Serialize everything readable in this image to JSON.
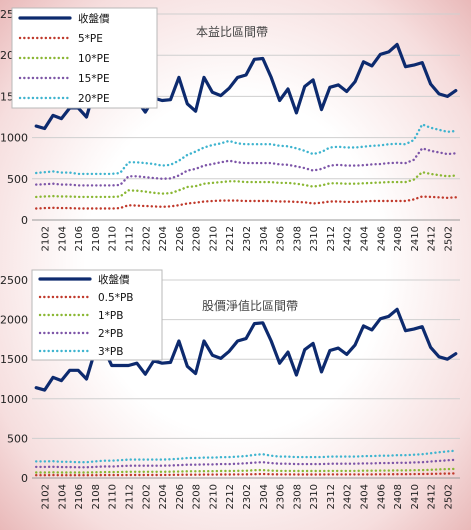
{
  "chart_data": [
    {
      "type": "line",
      "title": "本益比區間帶",
      "ylim": [
        0,
        2500
      ],
      "yticks": [
        0,
        500,
        1000,
        1500,
        2000,
        2500
      ],
      "x_tick_labels": [
        "2102",
        "2104",
        "2106",
        "2108",
        "2110",
        "2112",
        "2202",
        "2204",
        "2206",
        "2208",
        "2210",
        "2212",
        "2302",
        "2304",
        "2306",
        "2308",
        "2310",
        "2312",
        "2402",
        "2404",
        "2406",
        "2408",
        "2410",
        "2412",
        "2502"
      ],
      "x": [
        "2101",
        "2102",
        "2103",
        "2104",
        "2105",
        "2106",
        "2107",
        "2108",
        "2109",
        "2110",
        "2111",
        "2112",
        "2201",
        "2202",
        "2203",
        "2204",
        "2205",
        "2206",
        "2207",
        "2208",
        "2209",
        "2210",
        "2211",
        "2212",
        "2301",
        "2302",
        "2303",
        "2304",
        "2305",
        "2306",
        "2307",
        "2308",
        "2309",
        "2310",
        "2311",
        "2312",
        "2401",
        "2402",
        "2403",
        "2404",
        "2405",
        "2406",
        "2407",
        "2408",
        "2409",
        "2410",
        "2411",
        "2412",
        "2501",
        "2502",
        "2503"
      ],
      "grid": true,
      "legend_position": "top-left",
      "series": [
        {
          "name": "收盤價",
          "color": "#0d2a6e",
          "style": "solid",
          "values": [
            1140,
            1110,
            1270,
            1230,
            1360,
            1360,
            1250,
            1600,
            1650,
            1420,
            1420,
            1420,
            1450,
            1310,
            1480,
            1450,
            1460,
            1730,
            1410,
            1320,
            1730,
            1550,
            1510,
            1600,
            1730,
            1760,
            1950,
            1960,
            1730,
            1450,
            1590,
            1300,
            1620,
            1700,
            1340,
            1610,
            1640,
            1560,
            1680,
            1920,
            1870,
            2010,
            2040,
            2130,
            1860,
            1880,
            1910,
            1650,
            1530,
            1500,
            1570
          ]
        },
        {
          "name": "5*PE",
          "color": "#c0392b",
          "style": "dotted",
          "values": [
            140,
            145,
            148,
            145,
            145,
            140,
            140,
            140,
            140,
            140,
            145,
            180,
            175,
            170,
            165,
            160,
            165,
            180,
            200,
            210,
            225,
            230,
            235,
            235,
            235,
            230,
            230,
            230,
            230,
            225,
            225,
            220,
            215,
            200,
            210,
            225,
            225,
            220,
            220,
            225,
            230,
            230,
            230,
            230,
            230,
            250,
            285,
            280,
            275,
            270,
            275
          ]
        },
        {
          "name": "10*PE",
          "color": "#8ab733",
          "style": "dotted",
          "values": [
            280,
            285,
            290,
            285,
            285,
            280,
            280,
            280,
            280,
            280,
            285,
            360,
            355,
            345,
            330,
            320,
            325,
            360,
            400,
            410,
            440,
            450,
            460,
            470,
            470,
            460,
            460,
            460,
            460,
            450,
            450,
            440,
            425,
            405,
            420,
            445,
            445,
            440,
            440,
            445,
            450,
            455,
            460,
            460,
            460,
            490,
            580,
            560,
            545,
            530,
            540
          ]
        },
        {
          "name": "15*PE",
          "color": "#7d55a8",
          "style": "dotted",
          "values": [
            430,
            435,
            440,
            430,
            430,
            420,
            420,
            420,
            420,
            420,
            425,
            530,
            530,
            520,
            510,
            500,
            505,
            540,
            600,
            620,
            660,
            680,
            700,
            720,
            700,
            690,
            690,
            690,
            690,
            675,
            670,
            650,
            630,
            600,
            620,
            660,
            670,
            660,
            660,
            665,
            675,
            680,
            690,
            695,
            690,
            730,
            870,
            840,
            820,
            800,
            810
          ]
        },
        {
          "name": "20*PE",
          "color": "#3eb4cf",
          "style": "dotted",
          "values": [
            570,
            580,
            590,
            575,
            575,
            560,
            560,
            560,
            560,
            560,
            570,
            700,
            700,
            690,
            680,
            660,
            670,
            720,
            790,
            830,
            880,
            910,
            930,
            960,
            930,
            920,
            920,
            920,
            920,
            900,
            895,
            870,
            840,
            800,
            825,
            880,
            890,
            880,
            880,
            890,
            900,
            905,
            920,
            925,
            920,
            970,
            1160,
            1120,
            1095,
            1070,
            1080
          ]
        }
      ]
    },
    {
      "type": "line",
      "title": "股價淨值比區間帶",
      "ylim": [
        0,
        2500
      ],
      "yticks": [
        0,
        500,
        1000,
        1500,
        2000,
        2500
      ],
      "x_tick_labels": [
        "2102",
        "2104",
        "2106",
        "2108",
        "2110",
        "2112",
        "2202",
        "2204",
        "2206",
        "2208",
        "2210",
        "2212",
        "2302",
        "2304",
        "2306",
        "2308",
        "2310",
        "2312",
        "2402",
        "2404",
        "2406",
        "2408",
        "2410",
        "2412",
        "2502"
      ],
      "x": [
        "2101",
        "2102",
        "2103",
        "2104",
        "2105",
        "2106",
        "2107",
        "2108",
        "2109",
        "2110",
        "2111",
        "2112",
        "2201",
        "2202",
        "2203",
        "2204",
        "2205",
        "2206",
        "2207",
        "2208",
        "2209",
        "2210",
        "2211",
        "2212",
        "2301",
        "2302",
        "2303",
        "2304",
        "2305",
        "2306",
        "2307",
        "2308",
        "2309",
        "2310",
        "2311",
        "2312",
        "2401",
        "2402",
        "2403",
        "2404",
        "2405",
        "2406",
        "2407",
        "2408",
        "2409",
        "2410",
        "2411",
        "2412",
        "2501",
        "2502",
        "2503"
      ],
      "grid": true,
      "legend_position": "top-left",
      "series": [
        {
          "name": "收盤價",
          "color": "#0d2a6e",
          "style": "solid",
          "values": [
            1140,
            1110,
            1270,
            1230,
            1360,
            1360,
            1250,
            1600,
            1650,
            1420,
            1420,
            1420,
            1450,
            1310,
            1480,
            1450,
            1460,
            1730,
            1410,
            1320,
            1730,
            1550,
            1510,
            1600,
            1730,
            1760,
            1950,
            1960,
            1730,
            1450,
            1590,
            1300,
            1620,
            1700,
            1340,
            1610,
            1640,
            1560,
            1680,
            1920,
            1870,
            2010,
            2040,
            2130,
            1860,
            1880,
            1910,
            1650,
            1530,
            1500,
            1570
          ]
        },
        {
          "name": "0.5*PB",
          "color": "#c0392b",
          "style": "dotted",
          "values": [
            35,
            35,
            36,
            35,
            35,
            35,
            35,
            35,
            36,
            36,
            37,
            38,
            38,
            38,
            38,
            38,
            39,
            40,
            42,
            42,
            43,
            43,
            44,
            44,
            45,
            45,
            48,
            50,
            47,
            45,
            45,
            44,
            44,
            44,
            44,
            45,
            45,
            45,
            45,
            46,
            46,
            47,
            47,
            48,
            48,
            49,
            50,
            52,
            54,
            56,
            58
          ]
        },
        {
          "name": "1*PB",
          "color": "#8ab733",
          "style": "dotted",
          "values": [
            70,
            70,
            72,
            70,
            70,
            70,
            70,
            72,
            74,
            74,
            76,
            78,
            78,
            78,
            78,
            78,
            80,
            82,
            84,
            84,
            86,
            86,
            88,
            88,
            90,
            92,
            98,
            100,
            94,
            90,
            90,
            88,
            88,
            88,
            88,
            90,
            90,
            90,
            90,
            92,
            92,
            94,
            94,
            96,
            96,
            98,
            100,
            104,
            108,
            112,
            115
          ]
        },
        {
          "name": "2*PB",
          "color": "#7d55a8",
          "style": "dotted",
          "values": [
            140,
            140,
            142,
            138,
            138,
            135,
            135,
            140,
            145,
            145,
            150,
            155,
            155,
            155,
            155,
            155,
            158,
            162,
            168,
            168,
            172,
            172,
            175,
            176,
            180,
            185,
            195,
            200,
            188,
            180,
            180,
            176,
            176,
            176,
            176,
            180,
            180,
            180,
            180,
            184,
            184,
            188,
            188,
            192,
            192,
            196,
            200,
            208,
            216,
            224,
            230
          ]
        },
        {
          "name": "3*PB",
          "color": "#3eb4cf",
          "style": "dotted",
          "values": [
            210,
            210,
            212,
            205,
            205,
            200,
            200,
            210,
            218,
            218,
            225,
            232,
            232,
            232,
            232,
            232,
            236,
            242,
            252,
            252,
            258,
            258,
            262,
            264,
            270,
            278,
            292,
            300,
            282,
            270,
            270,
            264,
            264,
            264,
            264,
            270,
            270,
            270,
            270,
            276,
            276,
            282,
            282,
            288,
            288,
            294,
            300,
            312,
            324,
            336,
            345
          ]
        }
      ]
    }
  ]
}
